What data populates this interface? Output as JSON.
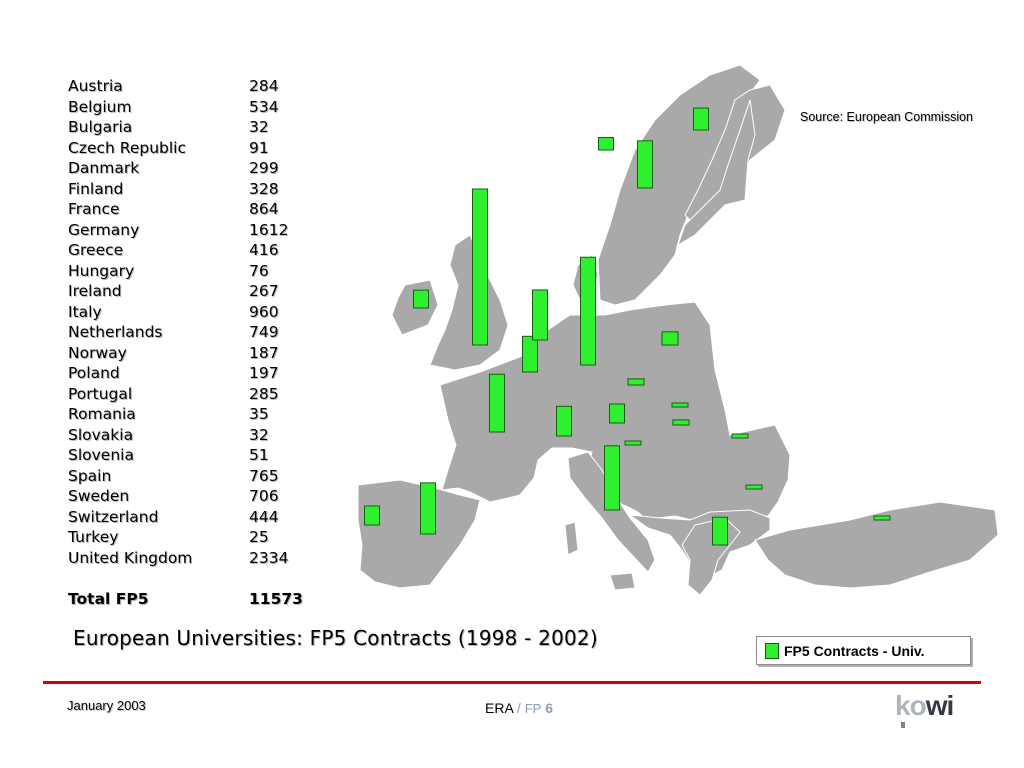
{
  "table": {
    "rows": [
      {
        "country": "Austria",
        "value": "284"
      },
      {
        "country": "Belgium",
        "value": "534"
      },
      {
        "country": "Bulgaria",
        "value": "32"
      },
      {
        "country": "Czech Republic",
        "value": "91"
      },
      {
        "country": "Danmark",
        "value": "299"
      },
      {
        "country": "Finland",
        "value": "328"
      },
      {
        "country": "France",
        "value": "864"
      },
      {
        "country": "Germany",
        "value": "1612"
      },
      {
        "country": "Greece",
        "value": "416"
      },
      {
        "country": "Hungary",
        "value": "76"
      },
      {
        "country": "Ireland",
        "value": "267"
      },
      {
        "country": "Italy",
        "value": "960"
      },
      {
        "country": "Netherlands",
        "value": "749"
      },
      {
        "country": "Norway",
        "value": "187"
      },
      {
        "country": "Poland",
        "value": "197"
      },
      {
        "country": "Portugal",
        "value": "285"
      },
      {
        "country": "Romania",
        "value": "35"
      },
      {
        "country": "Slovakia",
        "value": "32"
      },
      {
        "country": "Slovenia",
        "value": "51"
      },
      {
        "country": "Spain",
        "value": "765"
      },
      {
        "country": "Sweden",
        "value": "706"
      },
      {
        "country": "Switzerland",
        "value": "444"
      },
      {
        "country": "Turkey",
        "value": "25"
      },
      {
        "country": "United Kingdom",
        "value": "2334"
      }
    ],
    "total_label": "Total FP5",
    "total_value": "11573"
  },
  "source": "Source: European Commission",
  "title": "European Universities: FP5 Contracts (1998 - 2002)",
  "legend": {
    "label": "FP5 Contracts - Univ.",
    "color": "#2ef02e"
  },
  "colors": {
    "land": "#a9a9a9",
    "bar": "#2ef02e",
    "bar_border": "#1a5a1a",
    "rule": "#d80000"
  },
  "footer": {
    "date": "January 2003",
    "era": "ERA",
    "sep": " / ",
    "fp": "FP",
    "fp_num": " 6"
  },
  "logo": {
    "ko": "ko",
    "wi": "wi"
  }
}
